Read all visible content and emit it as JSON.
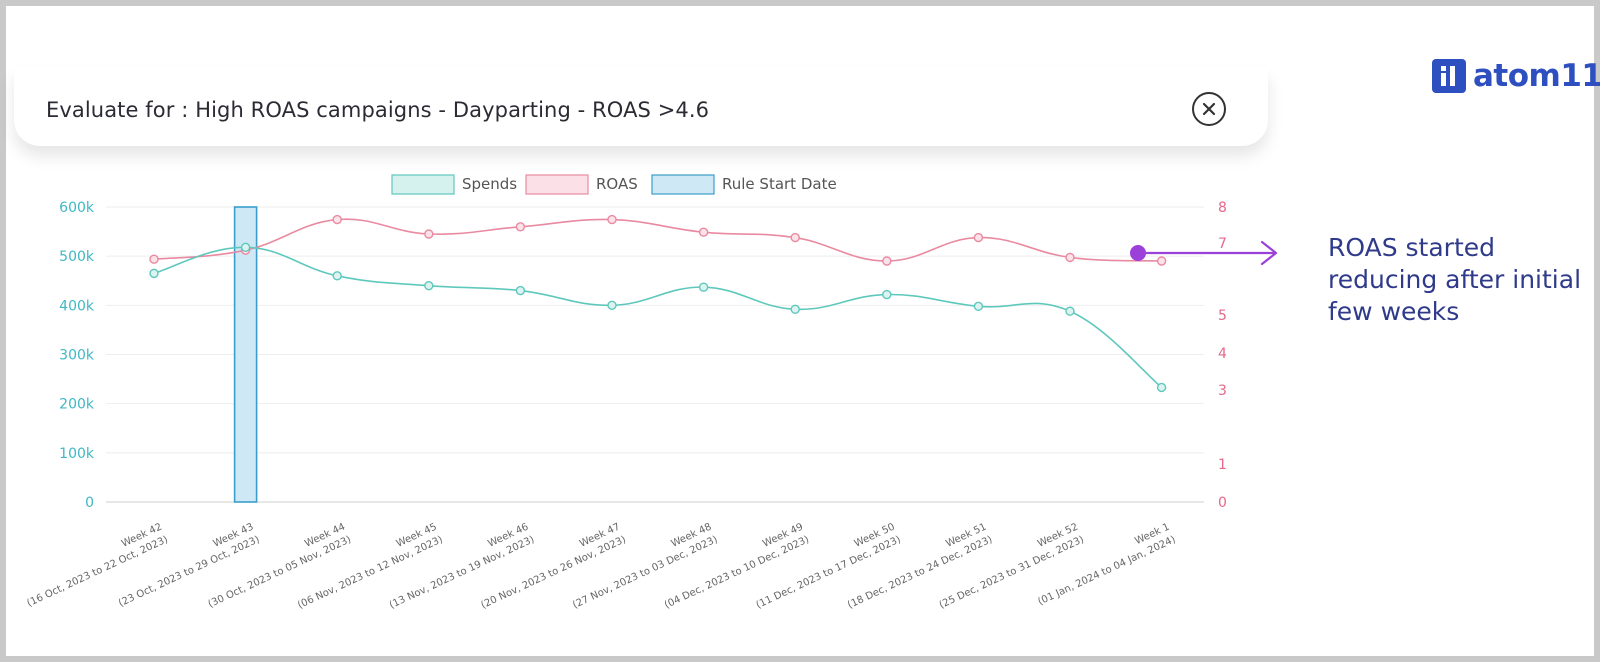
{
  "header": {
    "title": "Evaluate for : High ROAS campaigns - Dayparting - ROAS >4.6"
  },
  "brand": {
    "name": "atom11"
  },
  "annotation": {
    "text": "ROAS started reducing after initial few weeks",
    "color": "#9b40d8"
  },
  "colors": {
    "spends": "#5fc8bd",
    "roas": "#e98aa0",
    "rule": "#3a9ec9",
    "rule_fill": "#cfe8f6",
    "left_axis": "#3fb8c4",
    "right_axis": "#e5688a"
  },
  "chart_data": {
    "type": "line",
    "categories": [
      "Week 42|(16 Oct, 2023 to 22 Oct, 2023)",
      "Week 43|(23 Oct, 2023 to 29 Oct, 2023)",
      "Week 44|(30 Oct, 2023 to 05 Nov, 2023)",
      "Week 45|(06 Nov, 2023 to 12 Nov, 2023)",
      "Week 46|(13 Nov, 2023 to 19 Nov, 2023)",
      "Week 47|(20 Nov, 2023 to 26 Nov, 2023)",
      "Week 48|(27 Nov, 2023 to 03 Dec, 2023)",
      "Week 49|(04 Dec, 2023 to 10 Dec, 2023)",
      "Week 50|(11 Dec, 2023 to 17 Dec, 2023)",
      "Week 51|(18 Dec, 2023 to 24 Dec, 2023)",
      "Week 52|(25 Dec, 2023 to 31 Dec, 2023)",
      "Week 1|(01 Jan, 2024 to 04 Jan, 2024)"
    ],
    "legend": [
      "Spends",
      "ROAS",
      "Rule Start Date"
    ],
    "legend_position": "top-center",
    "series": [
      {
        "name": "Spends",
        "axis": "left",
        "values": [
          465000,
          518000,
          460000,
          440000,
          430000,
          400000,
          437000,
          392000,
          422000,
          398000,
          388000,
          233000
        ]
      },
      {
        "name": "ROAS",
        "axis": "right",
        "values": [
          6.55,
          6.8,
          7.65,
          7.25,
          7.45,
          7.65,
          7.3,
          7.15,
          6.5,
          7.15,
          6.6,
          6.5
        ]
      },
      {
        "name": "Rule Start Date",
        "type": "bar",
        "axis": "left",
        "values": [
          null,
          600000,
          null,
          null,
          null,
          null,
          null,
          null,
          null,
          null,
          null,
          null
        ]
      }
    ],
    "left_axis": {
      "ticks": [
        "0",
        "100k",
        "200k",
        "300k",
        "400k",
        "500k",
        "600k"
      ],
      "range": [
        0,
        600000
      ]
    },
    "right_axis": {
      "ticks": [
        "0",
        "1",
        "3",
        "4",
        "5",
        "7",
        "8"
      ]
    },
    "grid": true
  }
}
